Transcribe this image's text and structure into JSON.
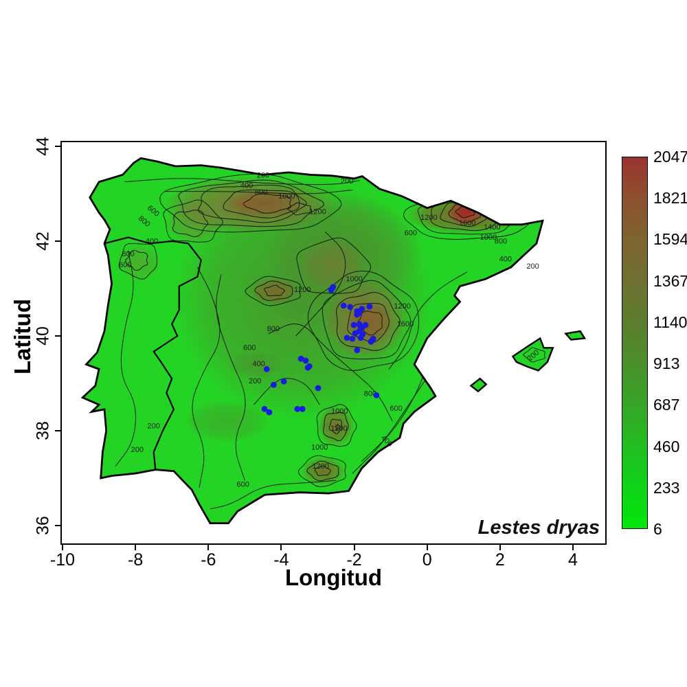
{
  "figure": {
    "species_label": "Lestes dryas",
    "x_axis": {
      "label": "Longitud",
      "ticks": [
        -10,
        -8,
        -6,
        -4,
        -2,
        0,
        2,
        4
      ]
    },
    "y_axis": {
      "label": "Latitud",
      "ticks": [
        36,
        38,
        40,
        42,
        44
      ]
    },
    "legend": {
      "tick_labels": [
        "2047",
        "1821",
        "1594",
        "1367",
        "1140",
        "913",
        "687",
        "460",
        "233",
        "6"
      ],
      "gradient_colors": [
        "#98332f",
        "#8d512f",
        "#7e642f",
        "#6e7030",
        "#5c7c2e",
        "#4b8f2b",
        "#37a527",
        "#22bd20",
        "#10d318",
        "#02e60b"
      ]
    },
    "map_colors": {
      "lowland_green": "#24d424",
      "midland_olive": "#4f8b2f",
      "upland_brown": "#8a6a3a",
      "high_brown": "#855c2c",
      "peak_red": "#a8342c",
      "contour_line": "#0d0d0d",
      "coast_border": "#000000",
      "sea": "#ffffff",
      "point_blue": "#1a1ae0"
    },
    "contour_labels": [
      {
        "t": "200",
        "lon": -4.5,
        "lat": 43.34,
        "r": 0
      },
      {
        "t": "400",
        "lon": -4.95,
        "lat": 43.12,
        "r": 0
      },
      {
        "t": "800",
        "lon": -4.55,
        "lat": 42.98,
        "r": 0
      },
      {
        "t": "1000",
        "lon": -3.85,
        "lat": 42.9,
        "r": 0
      },
      {
        "t": "1200",
        "lon": -3.0,
        "lat": 42.57,
        "r": 0
      },
      {
        "t": "600",
        "lon": -7.55,
        "lat": 42.6,
        "r": 40
      },
      {
        "t": "800",
        "lon": -7.8,
        "lat": 42.38,
        "r": 40
      },
      {
        "t": "400",
        "lon": -7.55,
        "lat": 41.95,
        "r": 0
      },
      {
        "t": "800",
        "lon": -8.2,
        "lat": 41.68,
        "r": 0
      },
      {
        "t": "600",
        "lon": -8.28,
        "lat": 41.45,
        "r": 0
      },
      {
        "t": "600",
        "lon": -0.45,
        "lat": 42.12,
        "r": 0
      },
      {
        "t": "1200",
        "lon": 0.05,
        "lat": 42.45,
        "r": 0
      },
      {
        "t": "1600",
        "lon": 1.1,
        "lat": 42.33,
        "r": 0
      },
      {
        "t": "1400",
        "lon": 1.78,
        "lat": 42.25,
        "r": 0
      },
      {
        "t": "1000",
        "lon": 1.68,
        "lat": 42.03,
        "r": 0
      },
      {
        "t": "800",
        "lon": 2.02,
        "lat": 41.95,
        "r": 0
      },
      {
        "t": "400",
        "lon": 2.15,
        "lat": 41.57,
        "r": 0
      },
      {
        "t": "200",
        "lon": 2.9,
        "lat": 41.42,
        "r": 0
      },
      {
        "t": "1000",
        "lon": -2.0,
        "lat": 41.15,
        "r": 0
      },
      {
        "t": "1200",
        "lon": -3.42,
        "lat": 40.93,
        "r": 0
      },
      {
        "t": "1200",
        "lon": -0.68,
        "lat": 40.58,
        "r": 0
      },
      {
        "t": "1600",
        "lon": -0.6,
        "lat": 40.2,
        "r": 0
      },
      {
        "t": "800",
        "lon": -4.22,
        "lat": 40.1,
        "r": 0
      },
      {
        "t": "600",
        "lon": -4.87,
        "lat": 39.7,
        "r": 0
      },
      {
        "t": "400",
        "lon": -4.62,
        "lat": 39.36,
        "r": 0
      },
      {
        "t": "200",
        "lon": -4.72,
        "lat": 39.0,
        "r": 0
      },
      {
        "t": "800",
        "lon": -1.56,
        "lat": 38.73,
        "r": 0
      },
      {
        "t": "600",
        "lon": -0.85,
        "lat": 38.42,
        "r": 0
      },
      {
        "t": "400",
        "lon": -1.15,
        "lat": 37.75,
        "r": 45
      },
      {
        "t": "1000",
        "lon": -2.4,
        "lat": 38.36,
        "r": 0
      },
      {
        "t": "1200",
        "lon": -2.42,
        "lat": 38.0,
        "r": 0
      },
      {
        "t": "1000",
        "lon": -2.95,
        "lat": 37.6,
        "r": 0
      },
      {
        "t": "1200",
        "lon": -2.92,
        "lat": 37.2,
        "r": 0
      },
      {
        "t": "600",
        "lon": -5.05,
        "lat": 36.82,
        "r": 0
      },
      {
        "t": "200",
        "lon": -7.95,
        "lat": 37.55,
        "r": 0
      },
      {
        "t": "200",
        "lon": -7.5,
        "lat": 38.05,
        "r": 0
      },
      {
        "t": "200",
        "lon": 2.95,
        "lat": 39.55,
        "r": -40
      },
      {
        "t": "200",
        "lon": -2.2,
        "lat": 43.22,
        "r": 0
      }
    ],
    "occurrences_lonlat": [
      [
        -2.63,
        40.97
      ],
      [
        -2.58,
        41.03
      ],
      [
        -2.29,
        40.64
      ],
      [
        -2.11,
        40.61
      ],
      [
        -1.92,
        40.52
      ],
      [
        -1.86,
        40.49
      ],
      [
        -1.79,
        40.57
      ],
      [
        -1.58,
        40.62
      ],
      [
        -1.92,
        40.45
      ],
      [
        -2.01,
        40.23
      ],
      [
        -1.86,
        40.25
      ],
      [
        -1.79,
        40.17
      ],
      [
        -1.69,
        40.23
      ],
      [
        -1.86,
        40.1
      ],
      [
        -1.97,
        40.06
      ],
      [
        -1.77,
        40.03
      ],
      [
        -2.2,
        39.96
      ],
      [
        -2.05,
        39.94
      ],
      [
        -1.82,
        39.96
      ],
      [
        -1.48,
        39.94
      ],
      [
        -1.54,
        39.88
      ],
      [
        -1.92,
        39.7
      ],
      [
        -3.46,
        39.52
      ],
      [
        -3.33,
        39.48
      ],
      [
        -3.23,
        39.36
      ],
      [
        -2.99,
        38.9
      ],
      [
        -1.39,
        38.75
      ],
      [
        -4.4,
        39.3
      ],
      [
        -3.27,
        39.33
      ],
      [
        -4.21,
        38.97
      ],
      [
        -3.93,
        39.04
      ],
      [
        -4.46,
        38.46
      ],
      [
        -4.33,
        38.39
      ],
      [
        -3.56,
        38.46
      ],
      [
        -3.42,
        38.46
      ]
    ]
  },
  "chart_data": {
    "type": "heatmap",
    "subtype": "geographic-contour-map",
    "annotation": "Lestes dryas",
    "xlabel": "Longitud",
    "ylabel": "Latitud",
    "x_ticks": [
      -10,
      -8,
      -6,
      -4,
      -2,
      0,
      2,
      4
    ],
    "y_ticks": [
      36,
      38,
      40,
      42,
      44
    ],
    "legend_values": [
      2047,
      1821,
      1594,
      1367,
      1140,
      913,
      687,
      460,
      233,
      6
    ],
    "labeled_contour_levels": [
      200,
      400,
      600,
      800,
      1000,
      1200,
      1400,
      1600
    ],
    "occurrence_point_count": 35
  }
}
